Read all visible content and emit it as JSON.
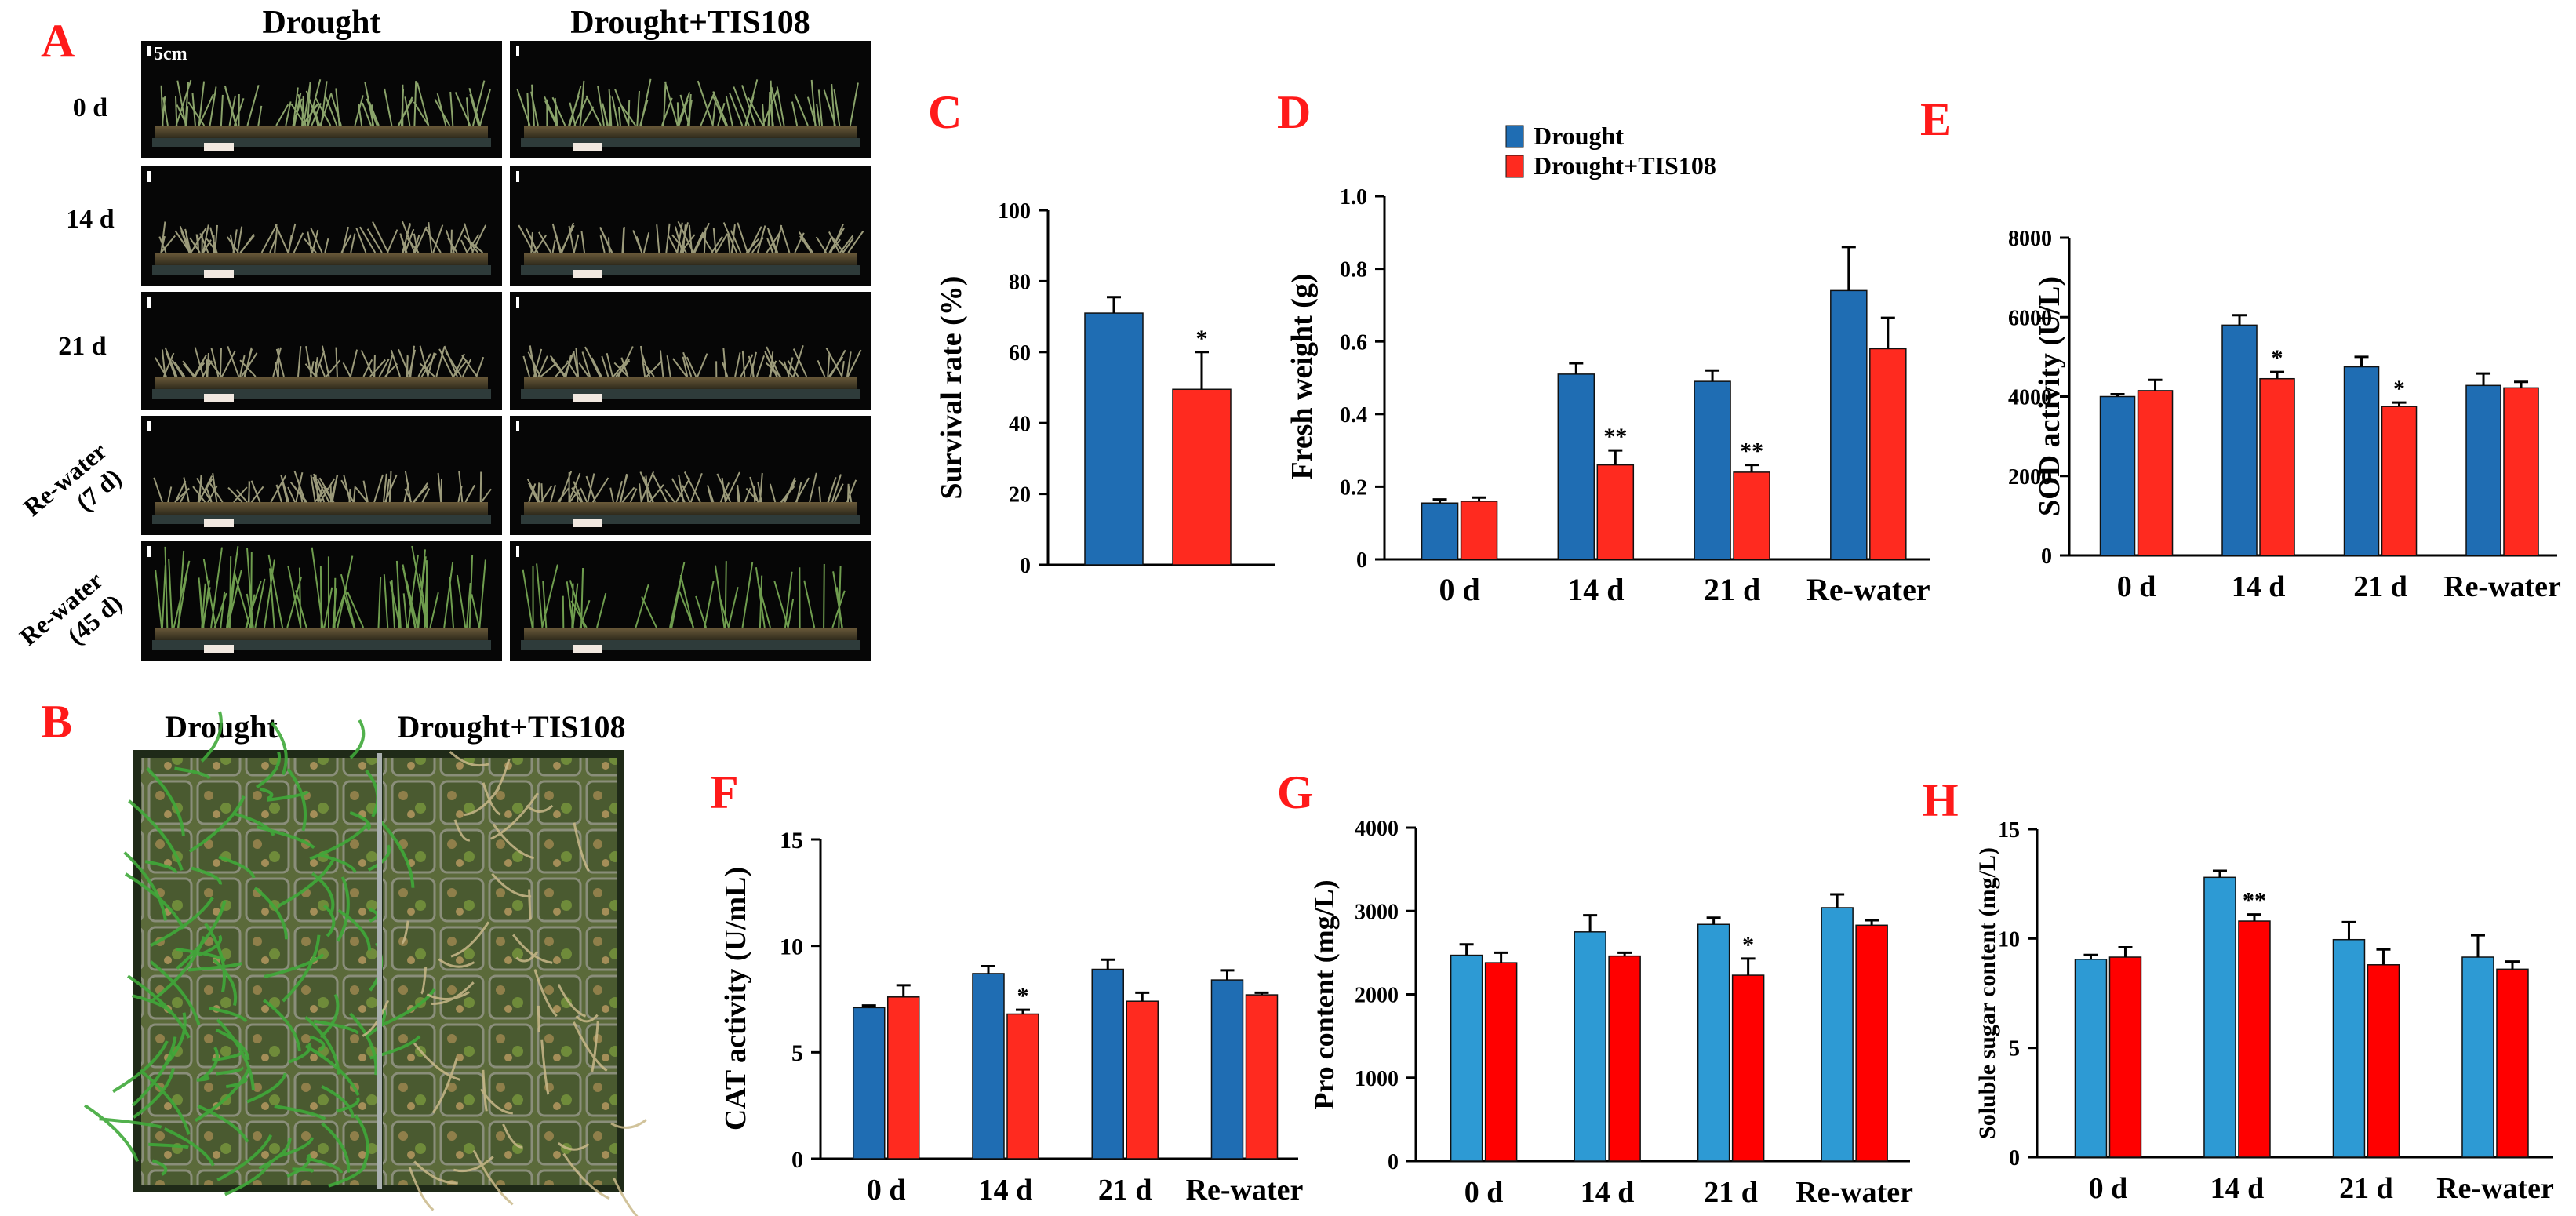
{
  "figure": {
    "panel_labels": [
      "A",
      "B",
      "C",
      "D",
      "E",
      "F",
      "G",
      "H"
    ],
    "colors": {
      "panel_label": "#ff1a1a",
      "drought_dark": "#1f6db3",
      "drought_light": "#2d9ad4",
      "tis108": "#ff2a1f",
      "axis": "#000000"
    },
    "photo_a": {
      "column_titles": [
        "Drought",
        "Drought+TIS108"
      ],
      "row_labels": [
        "0 d",
        "14 d",
        "21 d",
        "Re-water\n(7 d)",
        "Re-water\n(45 d)"
      ],
      "scale_bar": "5cm"
    },
    "photo_b": {
      "labels": [
        "Drought",
        "Drought+TIS108"
      ]
    }
  },
  "chart_data": [
    {
      "panel": "C",
      "type": "bar",
      "title": "",
      "xlabel": "",
      "ylabel": "Survival rate (%)",
      "ylim": [
        0,
        100
      ],
      "yticks": [
        0,
        20,
        40,
        60,
        80,
        100
      ],
      "categories": [
        ""
      ],
      "series": [
        {
          "name": "Drought",
          "values": [
            71
          ],
          "errors": [
            4.5
          ],
          "color": "#1f6db3"
        },
        {
          "name": "Drought+TIS108",
          "values": [
            49.5
          ],
          "errors": [
            10.5
          ],
          "color": "#ff2a1f"
        }
      ],
      "annotations": [
        {
          "category": 0,
          "series": 1,
          "text": "*"
        }
      ]
    },
    {
      "panel": "D",
      "type": "bar",
      "title": "",
      "xlabel": "",
      "ylabel": "Fresh weight (g)",
      "ylim": [
        0,
        1.0
      ],
      "yticks": [
        "0",
        "0.2",
        "0.4",
        "0.6",
        "0.8",
        "1.0"
      ],
      "categories": [
        "0 d",
        "14 d",
        "21 d",
        "Re-water"
      ],
      "legend": [
        "Drought",
        "Drought+TIS108"
      ],
      "series": [
        {
          "name": "Drought",
          "values": [
            0.155,
            0.51,
            0.49,
            0.74
          ],
          "errors": [
            0.01,
            0.03,
            0.03,
            0.12
          ],
          "color": "#1f6db3"
        },
        {
          "name": "Drought+TIS108",
          "values": [
            0.16,
            0.26,
            0.24,
            0.58
          ],
          "errors": [
            0.01,
            0.04,
            0.02,
            0.085
          ],
          "color": "#ff2a1f"
        }
      ],
      "annotations": [
        {
          "category": 1,
          "series": 1,
          "text": "**"
        },
        {
          "category": 2,
          "series": 1,
          "text": "**"
        }
      ]
    },
    {
      "panel": "E",
      "type": "bar",
      "title": "",
      "xlabel": "",
      "ylabel": "SOD activity (U/L)",
      "ylim": [
        0,
        8000
      ],
      "yticks": [
        0,
        2000,
        4000,
        6000,
        8000
      ],
      "categories": [
        "0 d",
        "14 d",
        "21 d",
        "Re-water"
      ],
      "series": [
        {
          "name": "Drought",
          "values": [
            4000,
            5800,
            4750,
            4280
          ],
          "errors": [
            60,
            250,
            250,
            300
          ],
          "color": "#1f6db3"
        },
        {
          "name": "Drought+TIS108",
          "values": [
            4150,
            4450,
            3750,
            4220
          ],
          "errors": [
            270,
            170,
            100,
            150
          ],
          "color": "#ff2a1f"
        }
      ],
      "annotations": [
        {
          "category": 1,
          "series": 1,
          "text": "*"
        },
        {
          "category": 2,
          "series": 1,
          "text": "*"
        }
      ]
    },
    {
      "panel": "F",
      "type": "bar",
      "title": "",
      "xlabel": "",
      "ylabel": "CAT activity (U/mL)",
      "ylim": [
        0,
        15
      ],
      "yticks": [
        0,
        5,
        10,
        15
      ],
      "categories": [
        "0 d",
        "14 d",
        "21 d",
        "Re-water"
      ],
      "series": [
        {
          "name": "Drought",
          "values": [
            7.1,
            8.7,
            8.9,
            8.4
          ],
          "errors": [
            0.1,
            0.35,
            0.45,
            0.45
          ],
          "color": "#1f6db3"
        },
        {
          "name": "Drought+TIS108",
          "values": [
            7.6,
            6.8,
            7.4,
            7.7
          ],
          "errors": [
            0.55,
            0.2,
            0.4,
            0.1
          ],
          "color": "#ff2a1f"
        }
      ],
      "annotations": [
        {
          "category": 1,
          "series": 1,
          "text": "*"
        }
      ]
    },
    {
      "panel": "G",
      "type": "bar",
      "title": "",
      "xlabel": "",
      "ylabel": "Pro content (mg/L)",
      "ylim": [
        0,
        4000
      ],
      "yticks": [
        0,
        1000,
        2000,
        3000,
        4000
      ],
      "categories": [
        "0 d",
        "14 d",
        "21 d",
        "Re-water"
      ],
      "series": [
        {
          "name": "Drought",
          "values": [
            2470,
            2750,
            2840,
            3040
          ],
          "errors": [
            130,
            200,
            80,
            160
          ],
          "color": "#2d9ad4"
        },
        {
          "name": "Drought+TIS108",
          "values": [
            2380,
            2460,
            2230,
            2830
          ],
          "errors": [
            120,
            40,
            200,
            60
          ],
          "color": "#ff0000"
        }
      ],
      "annotations": [
        {
          "category": 2,
          "series": 1,
          "text": "*"
        }
      ]
    },
    {
      "panel": "H",
      "type": "bar",
      "title": "",
      "xlabel": "",
      "ylabel": "Soluble sugar content (mg/L)",
      "ylim": [
        0,
        15
      ],
      "yticks": [
        0,
        5,
        10,
        15
      ],
      "categories": [
        "0 d",
        "14 d",
        "21 d",
        "Re-water"
      ],
      "series": [
        {
          "name": "Drought",
          "values": [
            9.05,
            12.8,
            9.95,
            9.15
          ],
          "errors": [
            0.2,
            0.3,
            0.8,
            1.0
          ],
          "color": "#2d9ad4"
        },
        {
          "name": "Drought+TIS108",
          "values": [
            9.15,
            10.8,
            8.8,
            8.6
          ],
          "errors": [
            0.45,
            0.3,
            0.7,
            0.35
          ],
          "color": "#ff0000"
        }
      ],
      "annotations": [
        {
          "category": 1,
          "series": 1,
          "text": "**"
        }
      ]
    }
  ]
}
